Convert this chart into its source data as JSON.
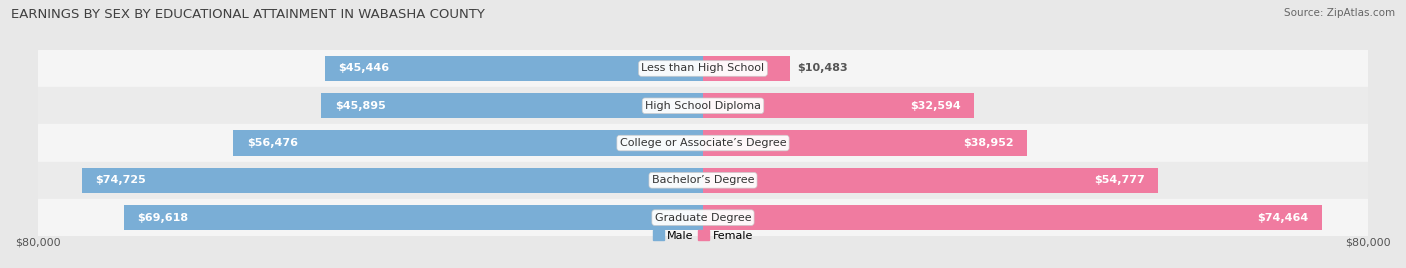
{
  "title": "EARNINGS BY SEX BY EDUCATIONAL ATTAINMENT IN WABASHA COUNTY",
  "source": "Source: ZipAtlas.com",
  "categories": [
    "Less than High School",
    "High School Diploma",
    "College or Associate’s Degree",
    "Bachelor’s Degree",
    "Graduate Degree"
  ],
  "male_values": [
    45446,
    45895,
    56476,
    74725,
    69618
  ],
  "female_values": [
    10483,
    32594,
    38952,
    54777,
    74464
  ],
  "male_color": "#7aaed6",
  "female_color": "#f07ba0",
  "max_val": 80000,
  "bg_color": "#e8e8e8",
  "row_colors": [
    "#f5f5f5",
    "#ebebeb",
    "#f5f5f5",
    "#ebebeb",
    "#f5f5f5"
  ],
  "title_fontsize": 9.5,
  "label_fontsize": 8,
  "value_fontsize": 8,
  "axis_label_fontsize": 8,
  "source_fontsize": 7.5
}
